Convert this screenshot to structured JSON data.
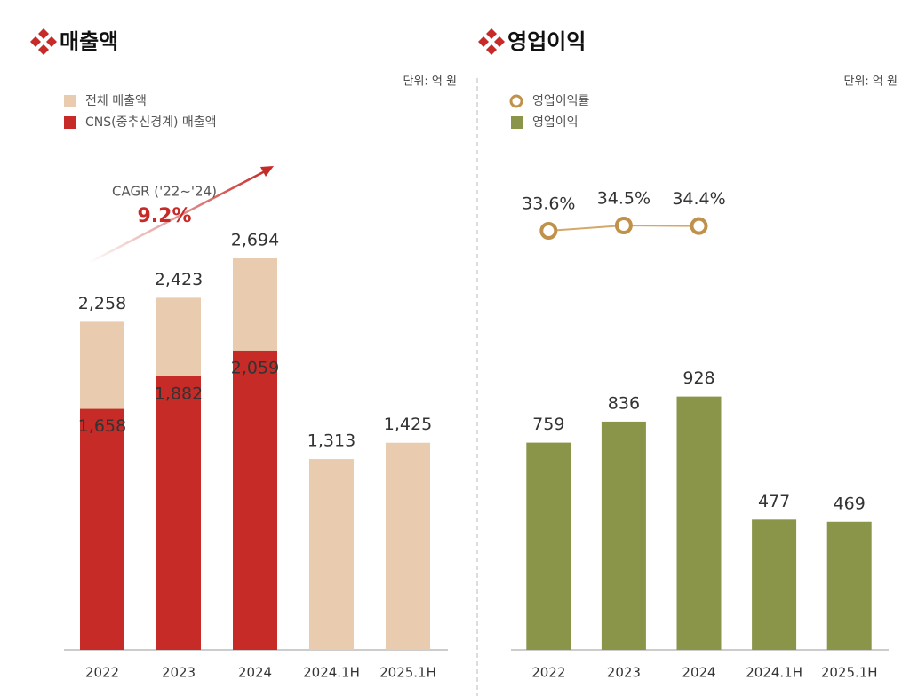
{
  "chart_data": [
    {
      "type": "bar",
      "title": "매출액",
      "unit": "단위: 억 원",
      "categories": [
        "2022",
        "2023",
        "2024",
        "2024.1H",
        "2025.1H"
      ],
      "ylim": [
        0,
        3250
      ],
      "series": [
        {
          "name": "전체 매출액",
          "color": "#e9cbb0",
          "values": [
            2258,
            2423,
            2694,
            1313,
            1425
          ],
          "value_labels": [
            "2,258",
            "2,423",
            "2,694",
            "1,313",
            "1,425"
          ]
        },
        {
          "name": "CNS(중추신경계) 매출액",
          "color": "#c62b27",
          "values": [
            1658,
            1882,
            2059,
            null,
            null
          ],
          "value_labels": [
            "1,658",
            "1,882",
            "2,059",
            null,
            null
          ]
        }
      ],
      "annotations": [
        "CAGR ('22~'24)",
        "9.2%"
      ]
    },
    {
      "type": "bar",
      "title": "영업이익",
      "unit": "단위: 억 원",
      "categories": [
        "2022",
        "2023",
        "2024",
        "2024.1H",
        "2025.1H"
      ],
      "ylim": [
        0,
        1730
      ],
      "y2lim": [
        -37.2,
        42.6
      ],
      "series": [
        {
          "name": "영업이익률",
          "type": "line",
          "axis": "y2",
          "color": "#c0914a",
          "values": [
            33.6,
            34.5,
            34.4,
            null,
            null
          ],
          "value_labels": [
            "33.6%",
            "34.5%",
            "34.4%",
            null,
            null
          ]
        },
        {
          "name": "영업이익",
          "color": "#8b9549",
          "values": [
            759,
            836,
            928,
            477,
            469
          ]
        }
      ]
    }
  ]
}
